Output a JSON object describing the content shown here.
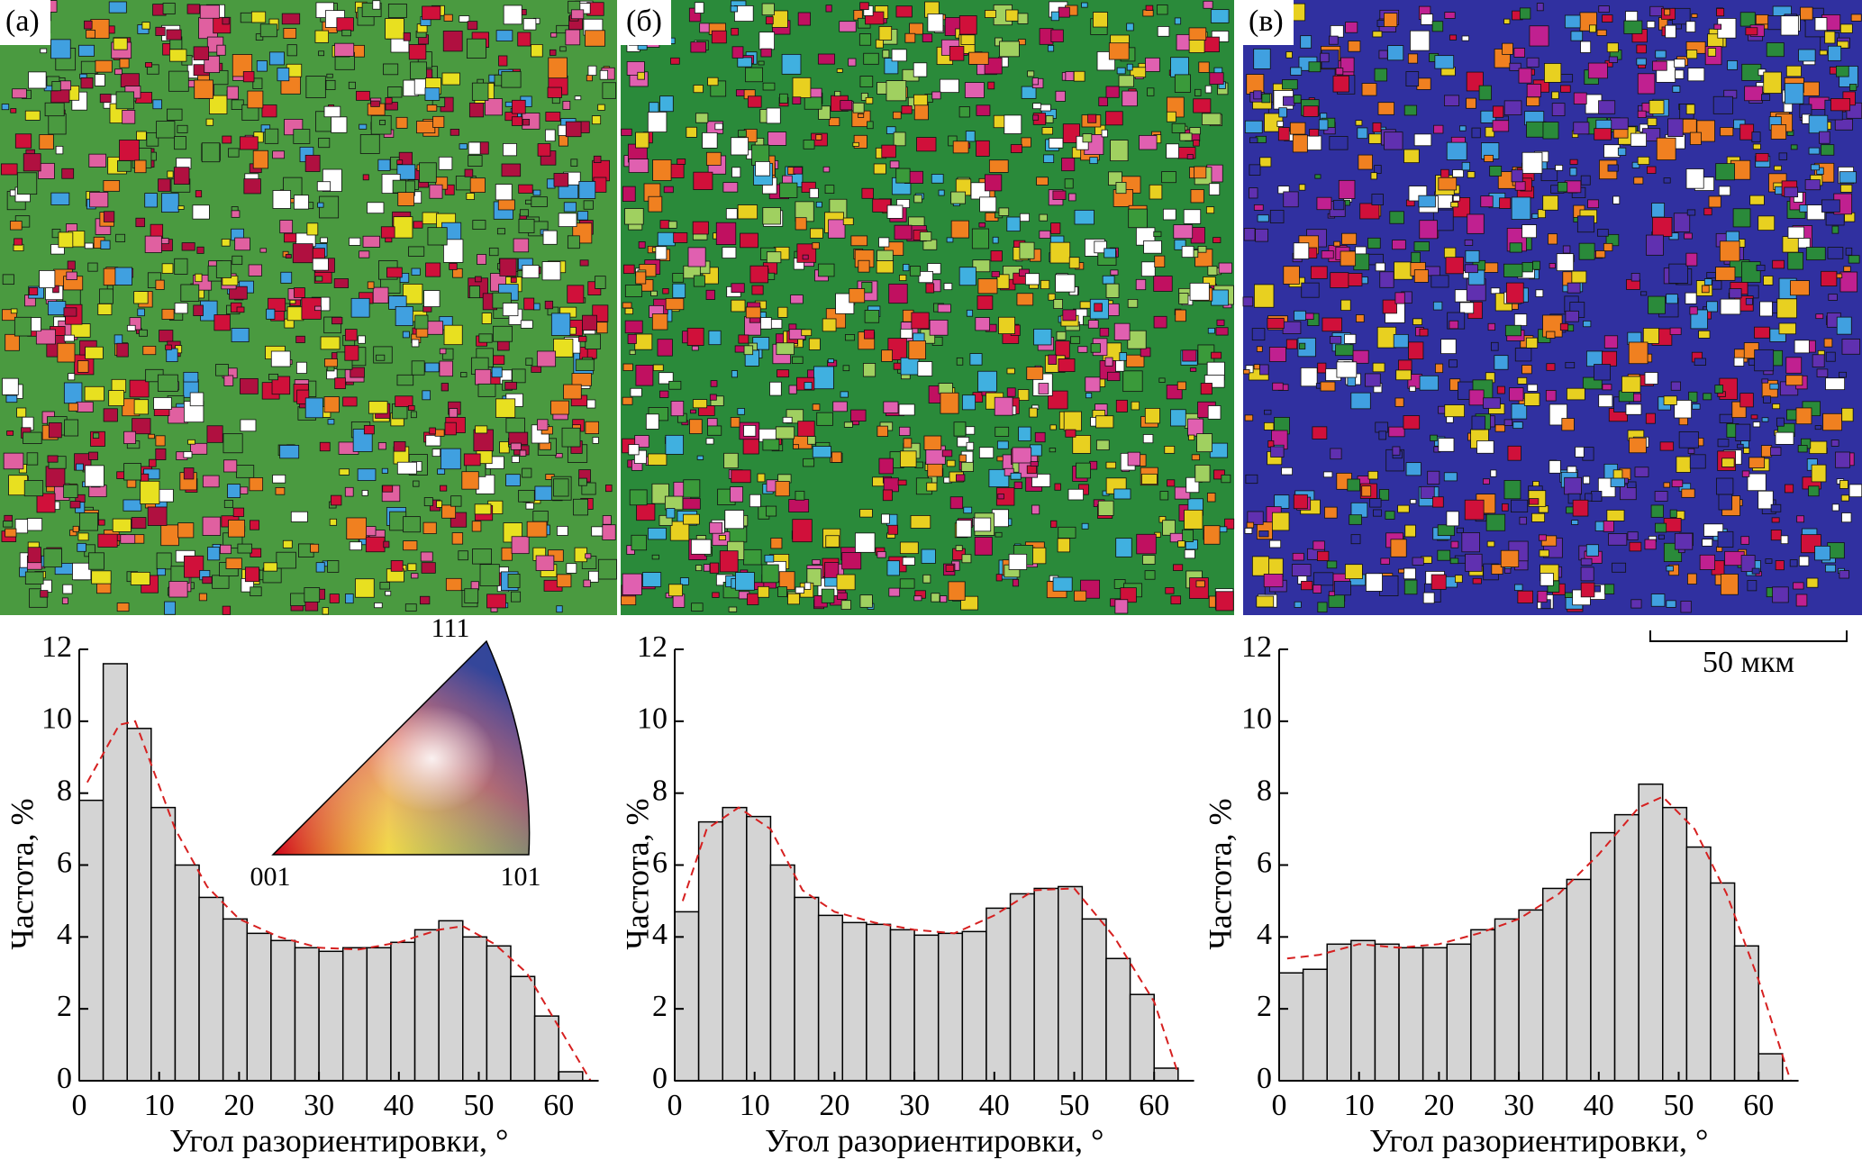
{
  "panels": [
    {
      "label": "(а)"
    },
    {
      "label": "(б)"
    },
    {
      "label": "(в)"
    }
  ],
  "scale_bar": {
    "label": "50 мкм"
  },
  "ipf_legend": {
    "labels": [
      "111",
      "001",
      "101"
    ]
  },
  "chart_data": [
    {
      "type": "histogram",
      "bins": [
        0,
        3,
        6,
        9,
        12,
        15,
        18,
        21,
        24,
        27,
        30,
        33,
        36,
        39,
        42,
        45,
        48,
        51,
        54,
        57,
        60,
        63
      ],
      "values": [
        7.8,
        11.6,
        9.8,
        7.6,
        6.0,
        5.1,
        4.5,
        4.1,
        3.9,
        3.7,
        3.6,
        3.7,
        3.7,
        3.85,
        4.2,
        4.45,
        4.0,
        3.75,
        2.9,
        1.8,
        0.25
      ],
      "color": "#d4d4d4",
      "fit": {
        "color": "#d62020",
        "x": [
          1,
          5,
          7,
          12,
          16,
          20,
          25,
          30,
          35,
          40,
          45,
          48,
          52,
          56,
          60,
          64
        ],
        "y": [
          8.3,
          9.9,
          10.0,
          7.0,
          5.4,
          4.5,
          4.0,
          3.7,
          3.65,
          3.85,
          4.2,
          4.3,
          3.8,
          3.0,
          1.5,
          0
        ]
      },
      "xlim": [
        0,
        65
      ],
      "ylim": [
        0,
        12
      ],
      "xticks": [
        0,
        10,
        20,
        30,
        40,
        50,
        60
      ],
      "yticks": [
        0,
        2,
        4,
        6,
        8,
        10,
        12
      ],
      "xlabel": "Угол разориентировки, °",
      "ylabel": "Частота, %"
    },
    {
      "type": "histogram",
      "bins": [
        0,
        3,
        6,
        9,
        12,
        15,
        18,
        21,
        24,
        27,
        30,
        33,
        36,
        39,
        42,
        45,
        48,
        51,
        54,
        57,
        60,
        63
      ],
      "values": [
        4.7,
        7.2,
        7.6,
        7.35,
        6.0,
        5.1,
        4.6,
        4.4,
        4.35,
        4.2,
        4.05,
        4.1,
        4.15,
        4.8,
        5.2,
        5.35,
        5.4,
        4.5,
        3.4,
        2.4,
        0.35
      ],
      "color": "#d4d4d4",
      "fit": {
        "color": "#d62020",
        "x": [
          1,
          4,
          8,
          12,
          16,
          20,
          25,
          30,
          35,
          40,
          45,
          50,
          55,
          60,
          63
        ],
        "y": [
          5.0,
          7.0,
          7.6,
          7.0,
          5.3,
          4.7,
          4.4,
          4.2,
          4.1,
          4.6,
          5.3,
          5.35,
          4.0,
          2.2,
          0.2
        ]
      },
      "xlim": [
        0,
        65
      ],
      "ylim": [
        0,
        12
      ],
      "xticks": [
        0,
        10,
        20,
        30,
        40,
        50,
        60
      ],
      "yticks": [
        0,
        2,
        4,
        6,
        8,
        10,
        12
      ],
      "xlabel": "Угол разориентировки, °",
      "ylabel": "Частота, %"
    },
    {
      "type": "histogram",
      "bins": [
        0,
        3,
        6,
        9,
        12,
        15,
        18,
        21,
        24,
        27,
        30,
        33,
        36,
        39,
        42,
        45,
        48,
        51,
        54,
        57,
        60,
        63
      ],
      "values": [
        3.0,
        3.1,
        3.8,
        3.9,
        3.8,
        3.7,
        3.7,
        3.8,
        4.2,
        4.5,
        4.75,
        5.35,
        5.6,
        6.9,
        7.4,
        8.25,
        7.6,
        6.5,
        5.5,
        3.75,
        0.75
      ],
      "color": "#d4d4d4",
      "fit": {
        "color": "#d62020",
        "x": [
          1,
          5,
          10,
          15,
          20,
          25,
          30,
          35,
          40,
          45,
          48,
          52,
          56,
          60,
          64
        ],
        "y": [
          3.4,
          3.5,
          3.8,
          3.7,
          3.8,
          4.1,
          4.5,
          5.2,
          6.3,
          7.6,
          7.9,
          7.0,
          5.2,
          2.8,
          0
        ]
      },
      "xlim": [
        0,
        65
      ],
      "ylim": [
        0,
        12
      ],
      "xticks": [
        0,
        10,
        20,
        30,
        40,
        50,
        60
      ],
      "yticks": [
        0,
        2,
        4,
        6,
        8,
        10,
        12
      ],
      "xlabel": "Угол разориентировки, °",
      "ylabel": "Частота, %"
    }
  ]
}
